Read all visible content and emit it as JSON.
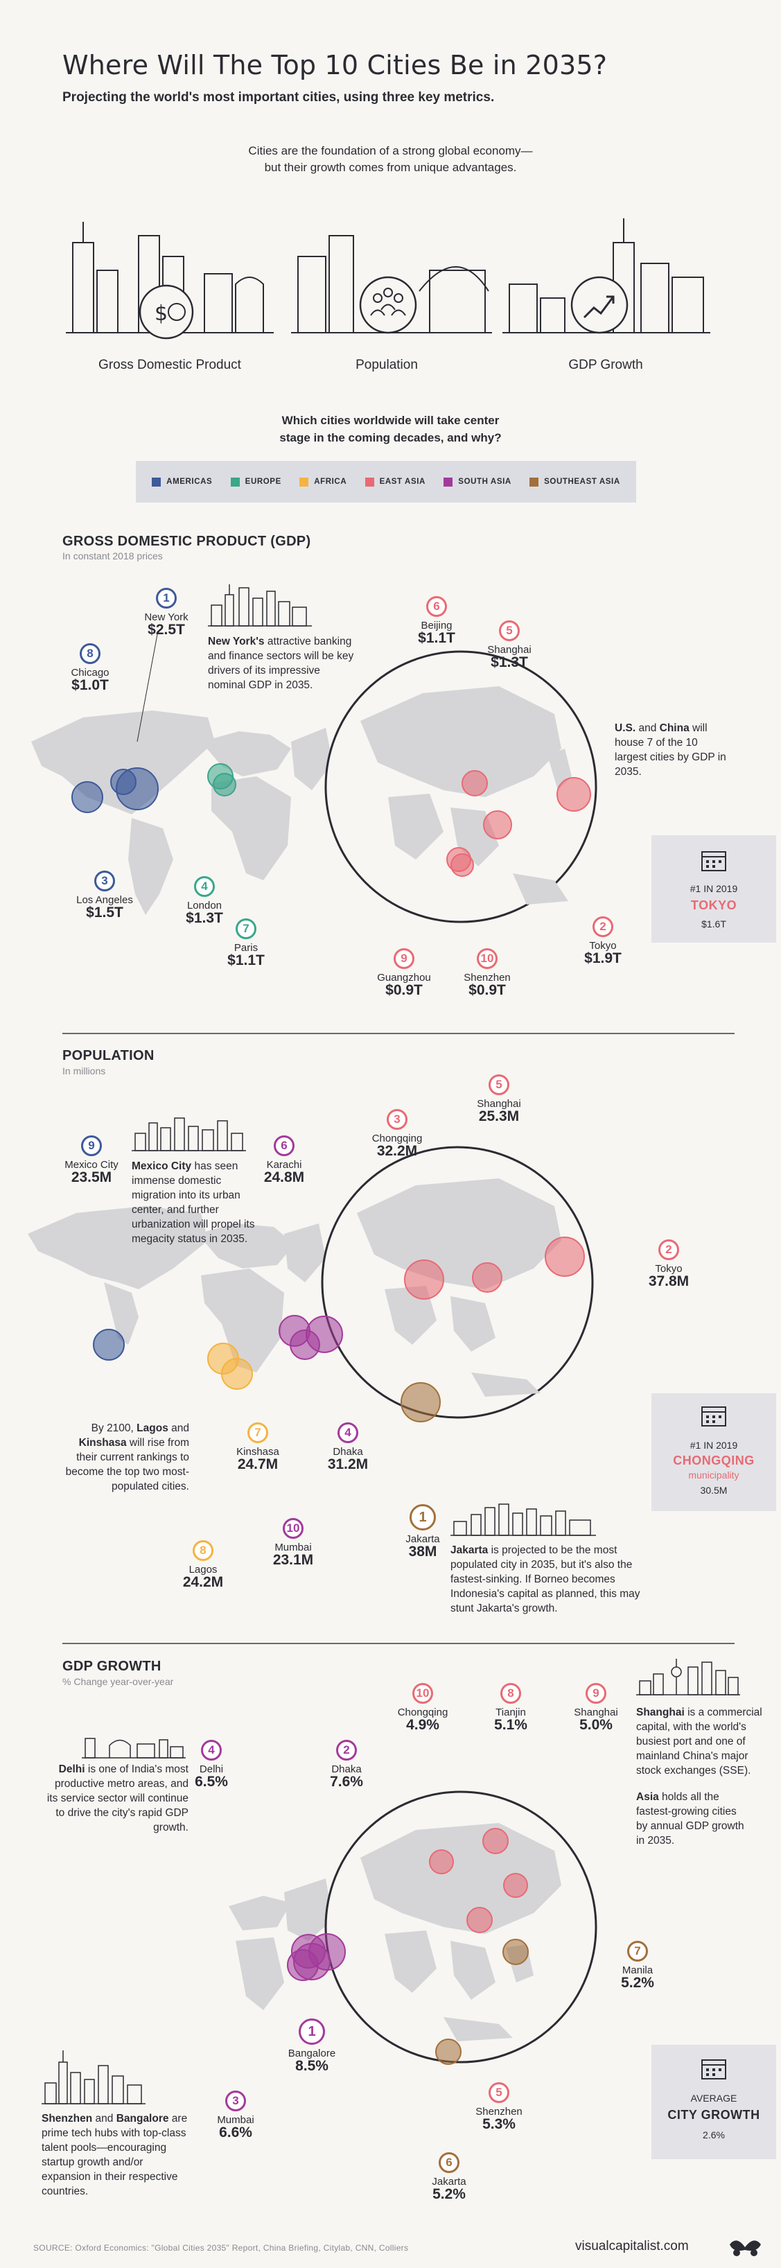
{
  "header": {
    "title": "Where Will The Top 10 Cities Be in 2035?",
    "subtitle": "Projecting the world's most important cities, using three key metrics.",
    "intro_line1": "Cities are the foundation of a strong global economy—",
    "intro_line2": "but their growth comes from unique advantages."
  },
  "metrics": [
    {
      "label": "Gross Domestic Product",
      "icon": "globe-money-icon"
    },
    {
      "label": "Population",
      "icon": "people-group-icon"
    },
    {
      "label": "GDP Growth",
      "icon": "growth-chart-icon"
    }
  ],
  "question": {
    "line1": "Which cities worldwide will take center",
    "line2": "stage in the coming decades, and why?"
  },
  "legend": [
    {
      "label": "AMERICAS",
      "color": "#3d5a99"
    },
    {
      "label": "EUROPE",
      "color": "#3aa68a"
    },
    {
      "label": "AFRICA",
      "color": "#f5b342"
    },
    {
      "label": "EAST ASIA",
      "color": "#e86a74"
    },
    {
      "label": "SOUTH ASIA",
      "color": "#a33a9b"
    },
    {
      "label": "SOUTHEAST ASIA",
      "color": "#a36f3a"
    }
  ],
  "gdp": {
    "title": "GROSS DOMESTIC PRODUCT (GDP)",
    "subtitle": "In constant 2018 prices",
    "cities": [
      {
        "rank": "1",
        "name": "New York",
        "value": "$2.5T",
        "color": "#3d5a99"
      },
      {
        "rank": "2",
        "name": "Tokyo",
        "value": "$1.9T",
        "color": "#e86a74"
      },
      {
        "rank": "3",
        "name": "Los Angeles",
        "value": "$1.5T",
        "color": "#3d5a99"
      },
      {
        "rank": "4",
        "name": "London",
        "value": "$1.3T",
        "color": "#3aa68a"
      },
      {
        "rank": "5",
        "name": "Shanghai",
        "value": "$1.3T",
        "color": "#e86a74"
      },
      {
        "rank": "6",
        "name": "Beijing",
        "value": "$1.1T",
        "color": "#e86a74"
      },
      {
        "rank": "7",
        "name": "Paris",
        "value": "$1.1T",
        "color": "#3aa68a"
      },
      {
        "rank": "8",
        "name": "Chicago",
        "value": "$1.0T",
        "color": "#3d5a99"
      },
      {
        "rank": "9",
        "name": "Guangzhou",
        "value": "$0.9T",
        "color": "#e86a74"
      },
      {
        "rank": "10",
        "name": "Shenzhen",
        "value": "$0.9T",
        "color": "#e86a74"
      }
    ],
    "note_bold": "New York's",
    "note_text": " attractive banking and finance sectors will be key drivers of its impressive nominal GDP in 2035.",
    "asia_note_b1": "U.S.",
    "asia_note_and": " and ",
    "asia_note_b2": "China",
    "asia_note_text": " will house 7 of the 10 largest cities by GDP in 2035.",
    "card": {
      "label": "#1 IN 2019",
      "city": "TOKYO",
      "value": "$1.6T",
      "color": "#e86a74"
    }
  },
  "population": {
    "title": "POPULATION",
    "subtitle": "In millions",
    "cities": [
      {
        "rank": "1",
        "name": "Jakarta",
        "value": "38M",
        "color": "#a36f3a"
      },
      {
        "rank": "2",
        "name": "Tokyo",
        "value": "37.8M",
        "color": "#e86a74"
      },
      {
        "rank": "3",
        "name": "Chongqing",
        "value": "32.2M",
        "color": "#e86a74"
      },
      {
        "rank": "4",
        "name": "Dhaka",
        "value": "31.2M",
        "color": "#a33a9b"
      },
      {
        "rank": "5",
        "name": "Shanghai",
        "value": "25.3M",
        "color": "#e86a74"
      },
      {
        "rank": "6",
        "name": "Karachi",
        "value": "24.8M",
        "color": "#a33a9b"
      },
      {
        "rank": "7",
        "name": "Kinshasa",
        "value": "24.7M",
        "color": "#f5b342"
      },
      {
        "rank": "8",
        "name": "Lagos",
        "value": "24.2M",
        "color": "#f5b342"
      },
      {
        "rank": "9",
        "name": "Mexico City",
        "value": "23.5M",
        "color": "#3d5a99"
      },
      {
        "rank": "10",
        "name": "Mumbai",
        "value": "23.1M",
        "color": "#a33a9b"
      }
    ],
    "note_mexico_bold": "Mexico City",
    "note_mexico_text": " has seen immense domestic migration into its urban center, and further urbanization will propel its megacity status in 2035.",
    "note_africa_1": "By 2100, ",
    "note_africa_b1": "Lagos",
    "note_africa_and": " and ",
    "note_africa_b2": "Kinshasa",
    "note_africa_2": " will rise from their current rankings to become the top two most-populated cities.",
    "note_jakarta_bold": "Jakarta",
    "note_jakarta_text": " is projected to be the most populated city in 2035, but it's also the fastest-sinking. If Borneo becomes Indonesia's capital as planned, this may stunt Jakarta's growth.",
    "card": {
      "label": "#1 IN 2019",
      "city": "CHONGQING",
      "sub": "municipality",
      "value": "30.5M",
      "color": "#e86a74"
    }
  },
  "growth": {
    "title": "GDP GROWTH",
    "subtitle": "% Change year-over-year",
    "cities": [
      {
        "rank": "1",
        "name": "Bangalore",
        "value": "8.5%",
        "color": "#a33a9b"
      },
      {
        "rank": "2",
        "name": "Dhaka",
        "value": "7.6%",
        "color": "#a33a9b"
      },
      {
        "rank": "3",
        "name": "Mumbai",
        "value": "6.6%",
        "color": "#a33a9b"
      },
      {
        "rank": "4",
        "name": "Delhi",
        "value": "6.5%",
        "color": "#a33a9b"
      },
      {
        "rank": "5",
        "name": "Shenzhen",
        "value": "5.3%",
        "color": "#e86a74"
      },
      {
        "rank": "6",
        "name": "Jakarta",
        "value": "5.2%",
        "color": "#a36f3a"
      },
      {
        "rank": "7",
        "name": "Manila",
        "value": "5.2%",
        "color": "#a36f3a"
      },
      {
        "rank": "8",
        "name": "Tianjin",
        "value": "5.1%",
        "color": "#e86a74"
      },
      {
        "rank": "9",
        "name": "Shanghai",
        "value": "5.0%",
        "color": "#e86a74"
      },
      {
        "rank": "10",
        "name": "Chongqing",
        "value": "4.9%",
        "color": "#e86a74"
      }
    ],
    "note_delhi_bold": "Delhi",
    "note_delhi_text": " is one of India's most productive metro areas, and its service sector will continue to drive the city's rapid GDP growth.",
    "note_shanghai_bold": "Shanghai",
    "note_shanghai_text": " is a commercial capital, with the world's busiest port and one of mainland China's major stock exchanges (SSE).",
    "note_asia_bold": "Asia",
    "note_asia_text": " holds all the fastest-growing cities by annual GDP growth in 2035.",
    "note_tech_b1": "Shenzhen",
    "note_tech_and": " and ",
    "note_tech_b2": "Bangalore",
    "note_tech_text": " are prime tech hubs with top-class talent pools—encouraging startup growth and/or expansion in their respective countries.",
    "card": {
      "label": "AVERAGE",
      "city": "CITY GROWTH",
      "value": "2.6%",
      "color": "#2b2b33"
    }
  },
  "footer": {
    "source": "SOURCE: Oxford Economics: \"Global Cities 2035\" Report, China Briefing, Citylab, CNN, Colliers",
    "brand": "visualcapitalist.com"
  }
}
